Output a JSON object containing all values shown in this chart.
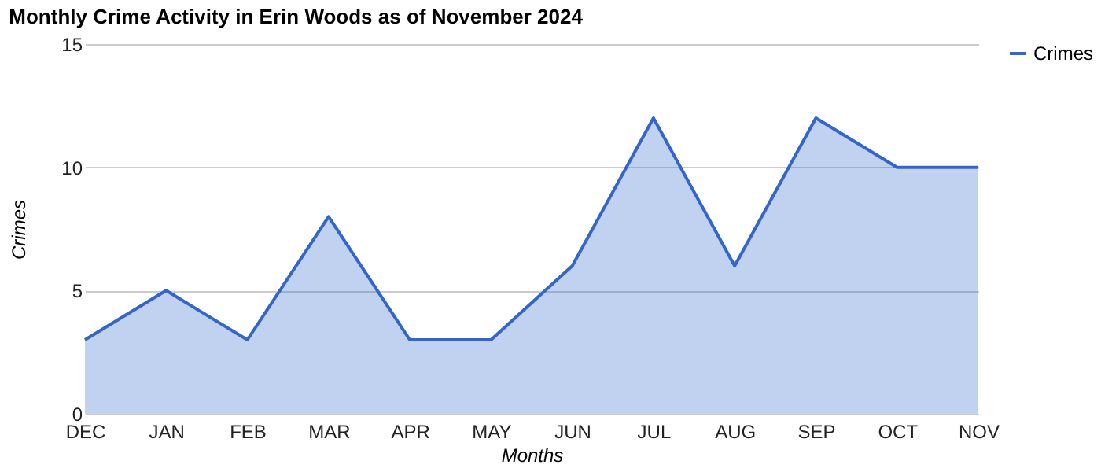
{
  "chart_data": {
    "type": "area",
    "title": "Monthly Crime Activity in Erin Woods as of November 2024",
    "xlabel": "Months",
    "ylabel": "Crimes",
    "categories": [
      "DEC",
      "JAN",
      "FEB",
      "MAR",
      "APR",
      "MAY",
      "JUN",
      "JUL",
      "AUG",
      "SEP",
      "OCT",
      "NOV"
    ],
    "series": [
      {
        "name": "Crimes",
        "color": "#3366cc",
        "values": [
          3,
          5,
          3,
          8,
          3,
          3,
          6,
          12,
          6,
          12,
          10,
          10
        ]
      }
    ],
    "ylim": [
      0,
      15
    ],
    "yticks": [
      0,
      5,
      10,
      15
    ],
    "grid": "y",
    "legend": "top right"
  }
}
